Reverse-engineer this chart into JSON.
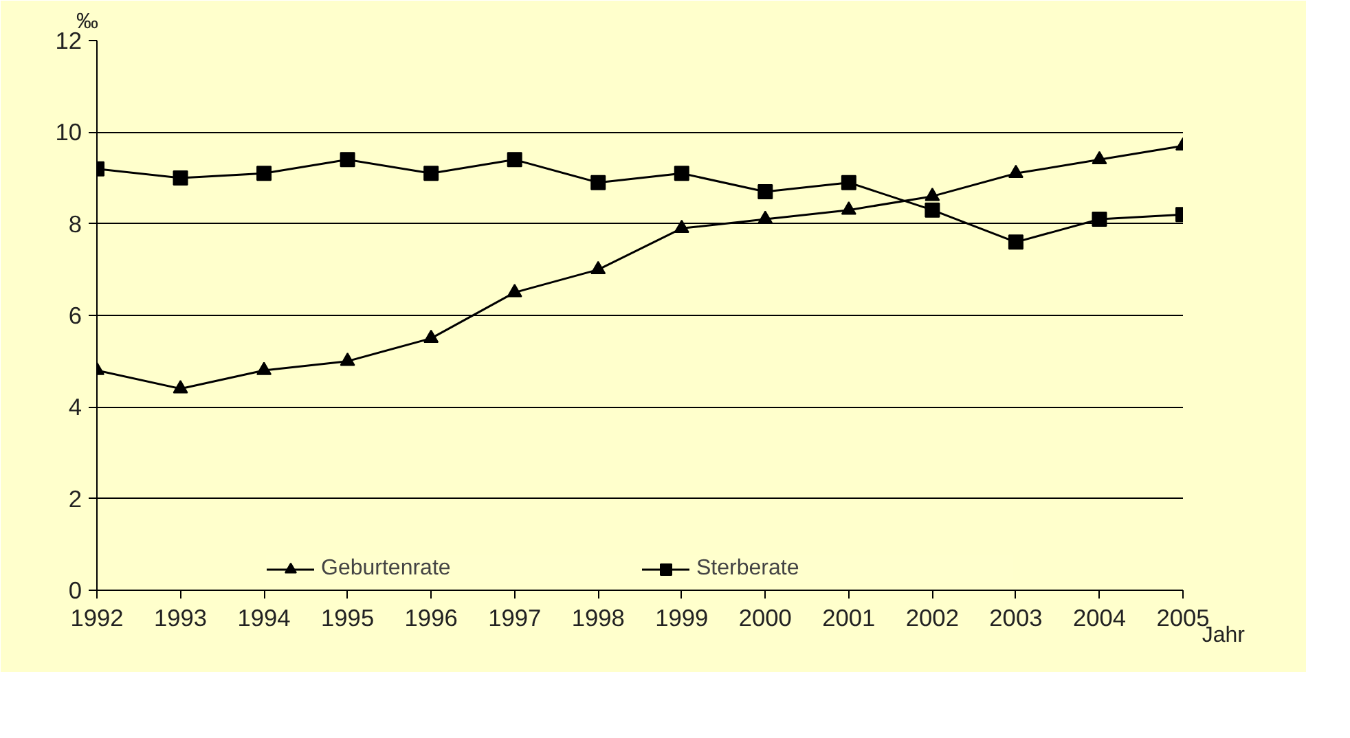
{
  "chart_data": {
    "type": "line",
    "xlabel": "Jahr",
    "ylabel": "‰",
    "x": [
      1992,
      1993,
      1994,
      1995,
      1996,
      1997,
      1998,
      1999,
      2000,
      2001,
      2002,
      2003,
      2004,
      2005
    ],
    "xlim": [
      1992,
      2005
    ],
    "xticks": [
      1992,
      1993,
      1994,
      1995,
      1996,
      1997,
      1998,
      1999,
      2000,
      2001,
      2002,
      2003,
      2004,
      2005
    ],
    "ylim": [
      0,
      12
    ],
    "yticks": [
      0,
      2,
      4,
      6,
      8,
      10,
      12
    ],
    "grid": "y",
    "legend": "bottom",
    "line_style": "solid",
    "series": [
      {
        "name": "Geburtenrate",
        "color": "#000000",
        "marker": "triangle",
        "values": [
          4.8,
          4.4,
          4.8,
          5.0,
          5.5,
          6.5,
          7.0,
          7.9,
          8.1,
          8.3,
          8.6,
          9.1,
          9.4,
          9.7
        ]
      },
      {
        "name": "Sterberate",
        "color": "#000000",
        "marker": "square",
        "values": [
          9.2,
          9.0,
          9.1,
          9.4,
          9.1,
          9.4,
          8.9,
          9.1,
          8.7,
          8.9,
          8.3,
          7.6,
          8.1,
          8.2
        ]
      }
    ]
  }
}
